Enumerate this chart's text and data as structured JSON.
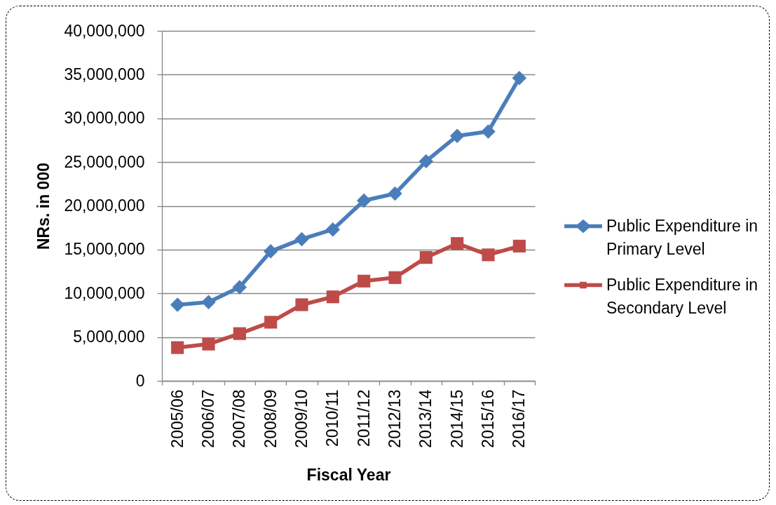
{
  "chart_data": {
    "type": "line",
    "xlabel": "Fiscal Year",
    "ylabel": "NRs. in 000",
    "categories": [
      "2005/06",
      "2006/07",
      "2007/08",
      "2008/09",
      "2009/10",
      "2010/11",
      "2011/12",
      "2012/13",
      "2013/14",
      "2014/15",
      "2015/16",
      "2016/17"
    ],
    "series": [
      {
        "name": "Public Expenditure in Primary Level",
        "color": "#4a7ebb",
        "marker": "diamond",
        "values": [
          8700000,
          9000000,
          10700000,
          14800000,
          16200000,
          17300000,
          20600000,
          21400000,
          25100000,
          28000000,
          28500000,
          34600000
        ]
      },
      {
        "name": "Public Expenditure in Secondary Level",
        "color": "#be4b48",
        "marker": "square",
        "values": [
          3800000,
          4200000,
          5400000,
          6700000,
          8700000,
          9600000,
          11400000,
          11800000,
          14100000,
          15700000,
          14400000,
          15400000
        ]
      }
    ],
    "ylim": [
      0,
      40000000
    ],
    "yticks": [
      0,
      {
        "value": 5000000,
        "label": "5,000,000"
      },
      {
        "value": 10000000,
        "label": "10,000,000"
      },
      {
        "value": 15000000,
        "label": "15,000,000"
      },
      {
        "value": 20000000,
        "label": "20,000,000"
      },
      {
        "value": 25000000,
        "label": "25,000,000"
      },
      {
        "value": 30000000,
        "label": "30,000,000"
      },
      {
        "value": 35000000,
        "label": "35,000,000"
      },
      {
        "value": 40000000,
        "label": "40,000,000"
      }
    ],
    "grid": "y",
    "legend": "right",
    "line_style": "solid"
  }
}
